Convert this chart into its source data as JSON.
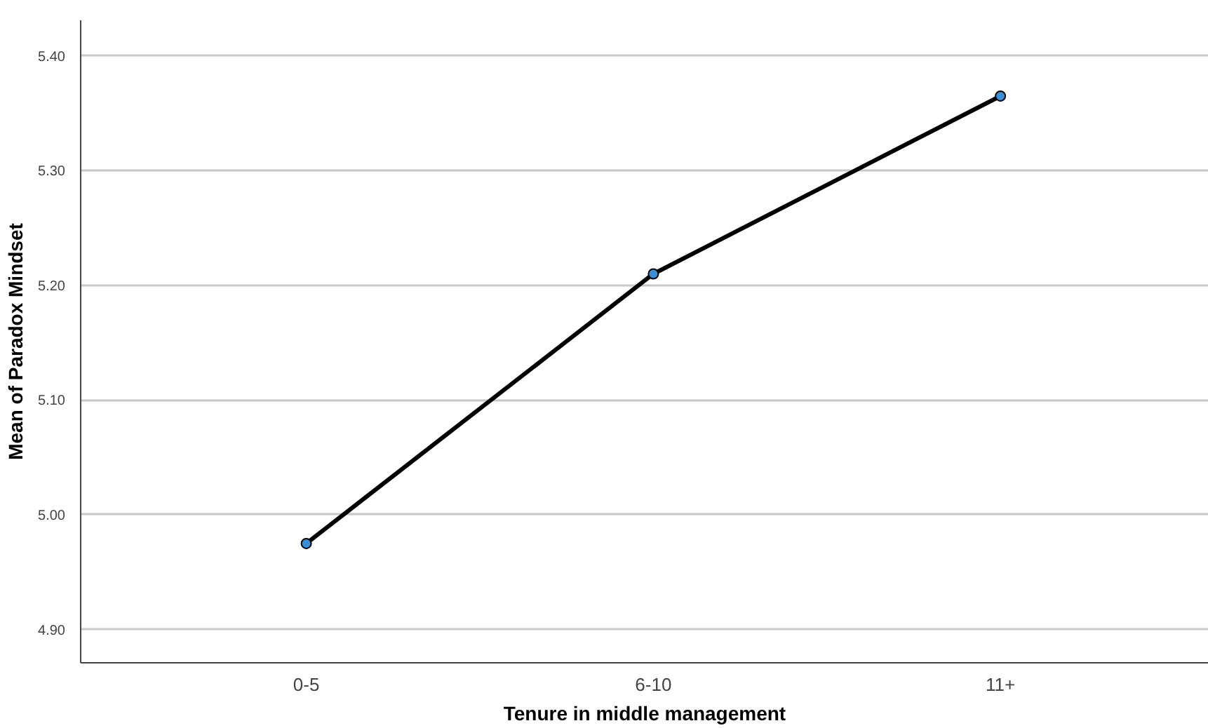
{
  "chart_data": {
    "type": "line",
    "xlabel": "Tenure in middle management",
    "ylabel": "Mean of Paradox Mindset",
    "categories": [
      "0-5",
      "6-10",
      "11+"
    ],
    "series": [
      {
        "color": "#000000",
        "values": [
          4.975,
          5.21,
          5.365
        ]
      }
    ],
    "ylim": [
      4.871,
      5.431
    ],
    "yticks": [
      {
        "value": 4.9,
        "label": "4.90"
      },
      {
        "value": 5.0,
        "label": "5.00"
      },
      {
        "value": 5.1,
        "label": "5.10"
      },
      {
        "value": 5.2,
        "label": "5.20"
      },
      {
        "value": 5.3,
        "label": "5.30"
      },
      {
        "value": 5.4,
        "label": "5.40"
      }
    ],
    "grid": "y",
    "marker": "circle",
    "line_style": "solid"
  }
}
